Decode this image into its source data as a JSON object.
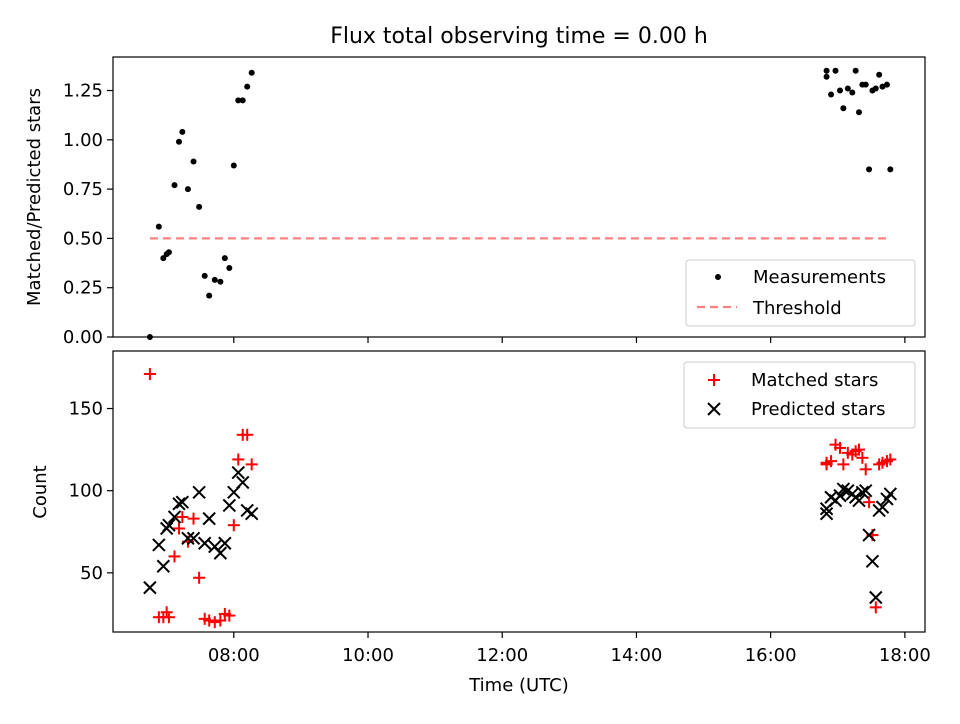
{
  "figure": {
    "title": "Flux total observing time = 0.00 h"
  },
  "chart_data": [
    {
      "type": "scatter",
      "panel": "top",
      "xlabel": "",
      "ylabel": "Matched/Predicted stars",
      "x_is_time_hours": true,
      "xlim": [
        6.2,
        18.3
      ],
      "ylim": [
        0.0,
        1.42
      ],
      "yticks": [
        0.0,
        0.25,
        0.5,
        0.75,
        1.0,
        1.25
      ],
      "ytick_labels": [
        "0.00",
        "0.25",
        "0.50",
        "0.75",
        "1.00",
        "1.25"
      ],
      "xticks": [
        8,
        10,
        12,
        14,
        16,
        18
      ],
      "grid": false,
      "legend_position": "lower-right",
      "series": [
        {
          "name": "Measurements",
          "kind": "points",
          "color": "#000000",
          "x": [
            "06:45",
            "06:53",
            "06:57",
            "07:00",
            "07:02",
            "07:07",
            "07:11",
            "07:14",
            "07:19",
            "07:24",
            "07:29",
            "07:34",
            "07:38",
            "07:43",
            "07:48",
            "07:52",
            "07:56",
            "08:00",
            "08:04",
            "08:08",
            "08:12",
            "08:16",
            "16:50",
            "16:50",
            "16:54",
            "16:58",
            "17:02",
            "17:05",
            "17:09",
            "17:13",
            "17:16",
            "17:19",
            "17:22",
            "17:25",
            "17:28",
            "17:31",
            "17:34",
            "17:37",
            "17:40",
            "17:44",
            "17:47"
          ],
          "y": [
            0.0,
            0.56,
            0.4,
            0.42,
            0.43,
            0.77,
            0.99,
            1.04,
            0.75,
            0.89,
            0.66,
            0.31,
            0.21,
            0.29,
            0.28,
            0.4,
            0.35,
            0.87,
            1.2,
            1.2,
            1.27,
            1.34,
            1.32,
            1.35,
            1.23,
            1.35,
            1.25,
            1.16,
            1.26,
            1.24,
            1.35,
            1.14,
            1.28,
            1.28,
            0.85,
            1.25,
            1.26,
            1.33,
            1.27,
            1.28,
            0.85
          ]
        },
        {
          "name": "Threshold",
          "kind": "dashed-line",
          "color": "#ff8080",
          "x": [
            "06:45",
            "17:47"
          ],
          "y": [
            0.5,
            0.5
          ]
        }
      ]
    },
    {
      "type": "scatter",
      "panel": "bottom",
      "xlabel": "Time (UTC)",
      "ylabel": "Count",
      "xlim": [
        6.2,
        18.3
      ],
      "ylim": [
        14,
        185
      ],
      "yticks": [
        50,
        100,
        150
      ],
      "xticks": [
        8,
        10,
        12,
        14,
        16,
        18
      ],
      "xtick_labels": [
        "08:00",
        "10:00",
        "12:00",
        "14:00",
        "16:00",
        "18:00"
      ],
      "grid": false,
      "legend_position": "upper-right",
      "series": [
        {
          "name": "Matched stars",
          "marker": "plus",
          "color": "#ff0000",
          "x": [
            "06:45",
            "06:53",
            "06:57",
            "07:00",
            "07:02",
            "07:07",
            "07:11",
            "07:14",
            "07:19",
            "07:24",
            "07:29",
            "07:34",
            "07:38",
            "07:43",
            "07:48",
            "07:52",
            "07:56",
            "08:00",
            "08:04",
            "08:08",
            "08:12",
            "08:16",
            "16:50",
            "16:50",
            "16:54",
            "16:58",
            "17:02",
            "17:05",
            "17:09",
            "17:13",
            "17:16",
            "17:19",
            "17:22",
            "17:25",
            "17:28",
            "17:31",
            "17:34",
            "17:37",
            "17:40",
            "17:44",
            "17:47"
          ],
          "y": [
            171,
            23,
            23,
            26,
            23,
            60,
            77,
            84,
            69,
            83,
            47,
            22,
            21,
            20,
            21,
            25,
            24,
            79,
            119,
            134,
            134,
            116,
            116,
            117,
            118,
            128,
            126,
            116,
            123,
            122,
            124,
            125,
            120,
            113,
            93,
            73,
            29,
            116,
            117,
            118,
            119
          ]
        },
        {
          "name": "Predicted stars",
          "marker": "x",
          "color": "#000000",
          "x": [
            "06:45",
            "06:53",
            "06:57",
            "07:00",
            "07:02",
            "07:07",
            "07:11",
            "07:14",
            "07:19",
            "07:24",
            "07:29",
            "07:34",
            "07:38",
            "07:43",
            "07:48",
            "07:52",
            "07:56",
            "08:00",
            "08:04",
            "08:08",
            "08:12",
            "08:16",
            "16:50",
            "16:50",
            "16:54",
            "16:58",
            "17:02",
            "17:05",
            "17:09",
            "17:13",
            "17:16",
            "17:19",
            "17:22",
            "17:25",
            "17:28",
            "17:31",
            "17:34",
            "17:37",
            "17:40",
            "17:44",
            "17:47"
          ],
          "y": [
            41,
            67,
            54,
            77,
            79,
            84,
            92,
            93,
            71,
            71,
            99,
            68,
            83,
            66,
            62,
            68,
            91,
            99,
            111,
            105,
            88,
            86,
            86,
            89,
            96,
            94,
            97,
            101,
            100,
            98,
            96,
            94,
            99,
            100,
            73,
            57,
            35,
            88,
            90,
            95,
            98
          ]
        }
      ]
    }
  ]
}
